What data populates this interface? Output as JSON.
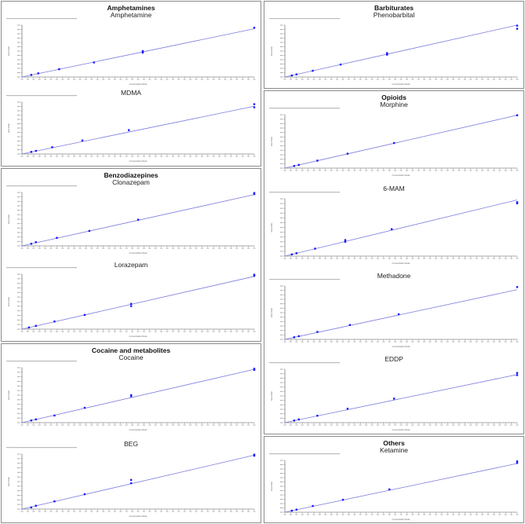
{
  "layout": {
    "left_panels": [
      "amphetamines",
      "benzodiazepines",
      "cocaine"
    ],
    "right_panels": [
      "barbiturates",
      "opioids",
      "others"
    ]
  },
  "groups": {
    "amphetamines": {
      "title": "Amphetamines"
    },
    "benzodiazepines": {
      "title": "Benzodiazepines"
    },
    "cocaine": {
      "title": "Cocaine and metabolites"
    },
    "barbiturates": {
      "title": "Barbiturates"
    },
    "opioids": {
      "title": "Opioids"
    },
    "others": {
      "title": "Others"
    }
  },
  "charts": {
    "amphetamine": {
      "title": "Amphetamine",
      "xlabel": "Concentration Ratio",
      "ylabel": "Area Ratio"
    },
    "mdma": {
      "title": "MDMA",
      "xlabel": "Concentration Ratio",
      "ylabel": "Area Ratio"
    },
    "clonazepam": {
      "title": "Clonazepam",
      "xlabel": "Concentration Ratio",
      "ylabel": "Area Ratio"
    },
    "lorazepam": {
      "title": "Lorazepam",
      "xlabel": "Concentration Ratio",
      "ylabel": "Area Ratio"
    },
    "cocaine": {
      "title": "Cocaine",
      "xlabel": "Concentration Ratio",
      "ylabel": "Area Ratio"
    },
    "beg": {
      "title": "BEG",
      "xlabel": "Concentration Ratio",
      "ylabel": "Area Ratio"
    },
    "phenobarbital": {
      "title": "Phenobarbital",
      "xlabel": "Concentration Ratio",
      "ylabel": "Area Ratio"
    },
    "morphine": {
      "title": "Morphine",
      "xlabel": "Concentration Ratio",
      "ylabel": "Area Ratio"
    },
    "6mam": {
      "title": "6-MAM",
      "xlabel": "Concentration Ratio",
      "ylabel": "Area Ratio"
    },
    "methadone": {
      "title": "Methadone",
      "xlabel": "Concentration Ratio",
      "ylabel": "Area Ratio"
    },
    "eddp": {
      "title": "EDDP",
      "xlabel": "Concentration Ratio",
      "ylabel": "Area Ratio"
    },
    "ketamine": {
      "title": "Ketamine",
      "xlabel": "Concentration Ratio",
      "ylabel": "Area Ratio"
    }
  },
  "colors": {
    "line": "#7b7bdc",
    "point": "#1a1aff",
    "axis": "#555555",
    "border": "#8c8c8c"
  },
  "chart_data": [
    {
      "type": "scatter",
      "title": "Amphetamine",
      "group": "Amphetamines",
      "xlabel": "Concentration Ratio",
      "ylabel": "Area Ratio",
      "fit": "linear",
      "points_rel": [
        [
          0.04,
          0.04
        ],
        [
          0.07,
          0.07
        ],
        [
          0.16,
          0.15
        ],
        [
          0.31,
          0.28
        ],
        [
          0.52,
          0.47
        ],
        [
          0.52,
          0.5
        ],
        [
          1.0,
          0.95
        ]
      ],
      "line_end_rel": 0.93
    },
    {
      "type": "scatter",
      "title": "MDMA",
      "group": "Amphetamines",
      "xlabel": "Concentration Ratio",
      "ylabel": "Area Ratio",
      "fit": "linear",
      "points_rel": [
        [
          0.04,
          0.04
        ],
        [
          0.06,
          0.06
        ],
        [
          0.13,
          0.13
        ],
        [
          0.26,
          0.26
        ],
        [
          0.46,
          0.46
        ],
        [
          1.0,
          0.9
        ],
        [
          1.0,
          0.96
        ]
      ],
      "line_end_rel": 0.92
    },
    {
      "type": "scatter",
      "title": "Clonazepam",
      "group": "Benzodiazepines",
      "xlabel": "Concentration Ratio",
      "ylabel": "Area Ratio",
      "fit": "linear",
      "points_rel": [
        [
          0.04,
          0.04
        ],
        [
          0.06,
          0.07
        ],
        [
          0.15,
          0.15
        ],
        [
          0.29,
          0.28
        ],
        [
          0.5,
          0.49
        ],
        [
          1.0,
          0.97
        ],
        [
          1.0,
          0.99
        ]
      ],
      "line_end_rel": 0.96
    },
    {
      "type": "scatter",
      "title": "Lorazepam",
      "group": "Benzodiazepines",
      "xlabel": "Concentration Ratio",
      "ylabel": "Area Ratio",
      "fit": "linear",
      "points_rel": [
        [
          0.03,
          0.03
        ],
        [
          0.06,
          0.06
        ],
        [
          0.14,
          0.14
        ],
        [
          0.27,
          0.26
        ],
        [
          0.47,
          0.42
        ],
        [
          0.47,
          0.46
        ],
        [
          1.0,
          0.97
        ],
        [
          1.0,
          0.99
        ]
      ],
      "line_end_rel": 0.96
    },
    {
      "type": "scatter",
      "title": "Cocaine",
      "group": "Cocaine and metabolites",
      "xlabel": "Concentration Ratio",
      "ylabel": "Area Ratio",
      "fit": "linear",
      "points_rel": [
        [
          0.04,
          0.04
        ],
        [
          0.06,
          0.06
        ],
        [
          0.14,
          0.13
        ],
        [
          0.27,
          0.27
        ],
        [
          0.47,
          0.48
        ],
        [
          0.47,
          0.5
        ],
        [
          1.0,
          0.96
        ],
        [
          1.0,
          0.98
        ]
      ],
      "line_end_rel": 0.97
    },
    {
      "type": "scatter",
      "title": "BEG",
      "group": "Cocaine and metabolites",
      "xlabel": "Concentration Ratio",
      "ylabel": "Area Ratio",
      "fit": "linear",
      "points_rel": [
        [
          0.04,
          0.03
        ],
        [
          0.06,
          0.06
        ],
        [
          0.14,
          0.14
        ],
        [
          0.27,
          0.27
        ],
        [
          0.47,
          0.47
        ],
        [
          0.47,
          0.53
        ],
        [
          1.0,
          0.97
        ],
        [
          1.0,
          0.99
        ]
      ],
      "line_end_rel": 0.98
    },
    {
      "type": "scatter",
      "title": "Phenobarbital",
      "group": "Barbiturates",
      "xlabel": "Concentration Ratio",
      "ylabel": "Area Ratio",
      "fit": "linear",
      "points_rel": [
        [
          0.03,
          0.03
        ],
        [
          0.05,
          0.05
        ],
        [
          0.12,
          0.12
        ],
        [
          0.24,
          0.24
        ],
        [
          0.44,
          0.43
        ],
        [
          0.44,
          0.46
        ],
        [
          1.0,
          0.93
        ],
        [
          1.0,
          0.99
        ]
      ],
      "line_end_rel": 1.0
    },
    {
      "type": "scatter",
      "title": "Morphine",
      "group": "Opioids",
      "xlabel": "Concentration Ratio",
      "ylabel": "Area Ratio",
      "fit": "linear",
      "points_rel": [
        [
          0.04,
          0.04
        ],
        [
          0.06,
          0.06
        ],
        [
          0.14,
          0.14
        ],
        [
          0.27,
          0.27
        ],
        [
          0.47,
          0.47
        ],
        [
          1.0,
          0.99
        ]
      ],
      "line_end_rel": 0.99
    },
    {
      "type": "scatter",
      "title": "6-MAM",
      "group": "Opioids",
      "xlabel": "Concentration Ratio",
      "ylabel": "Area Ratio",
      "fit": "linear",
      "points_rel": [
        [
          0.03,
          0.03
        ],
        [
          0.05,
          0.05
        ],
        [
          0.13,
          0.13
        ],
        [
          0.26,
          0.25
        ],
        [
          0.26,
          0.28
        ],
        [
          0.46,
          0.47
        ],
        [
          1.0,
          0.92
        ],
        [
          1.0,
          0.94
        ]
      ],
      "line_end_rel": 0.98
    },
    {
      "type": "scatter",
      "title": "Methadone",
      "group": "Opioids",
      "xlabel": "Concentration Ratio",
      "ylabel": "Area Ratio",
      "fit": "linear",
      "points_rel": [
        [
          0.04,
          0.04
        ],
        [
          0.06,
          0.06
        ],
        [
          0.14,
          0.14
        ],
        [
          0.28,
          0.27
        ],
        [
          0.49,
          0.47
        ],
        [
          1.0,
          0.98
        ]
      ],
      "line_end_rel": 0.93
    },
    {
      "type": "scatter",
      "title": "EDDP",
      "group": "Opioids",
      "xlabel": "Concentration Ratio",
      "ylabel": "Area Ratio",
      "fit": "linear",
      "points_rel": [
        [
          0.04,
          0.04
        ],
        [
          0.06,
          0.06
        ],
        [
          0.14,
          0.13
        ],
        [
          0.27,
          0.26
        ],
        [
          0.47,
          0.45
        ],
        [
          1.0,
          0.89
        ],
        [
          1.0,
          0.93
        ]
      ],
      "line_end_rel": 0.9
    },
    {
      "type": "scatter",
      "title": "Ketamine",
      "group": "Others",
      "xlabel": "Concentration Ratio",
      "ylabel": "Area Ratio",
      "fit": "linear",
      "points_rel": [
        [
          0.03,
          0.03
        ],
        [
          0.05,
          0.05
        ],
        [
          0.12,
          0.12
        ],
        [
          0.25,
          0.24
        ],
        [
          0.45,
          0.44
        ],
        [
          1.0,
          0.95
        ],
        [
          1.0,
          0.98
        ]
      ],
      "line_end_rel": 0.94
    }
  ]
}
